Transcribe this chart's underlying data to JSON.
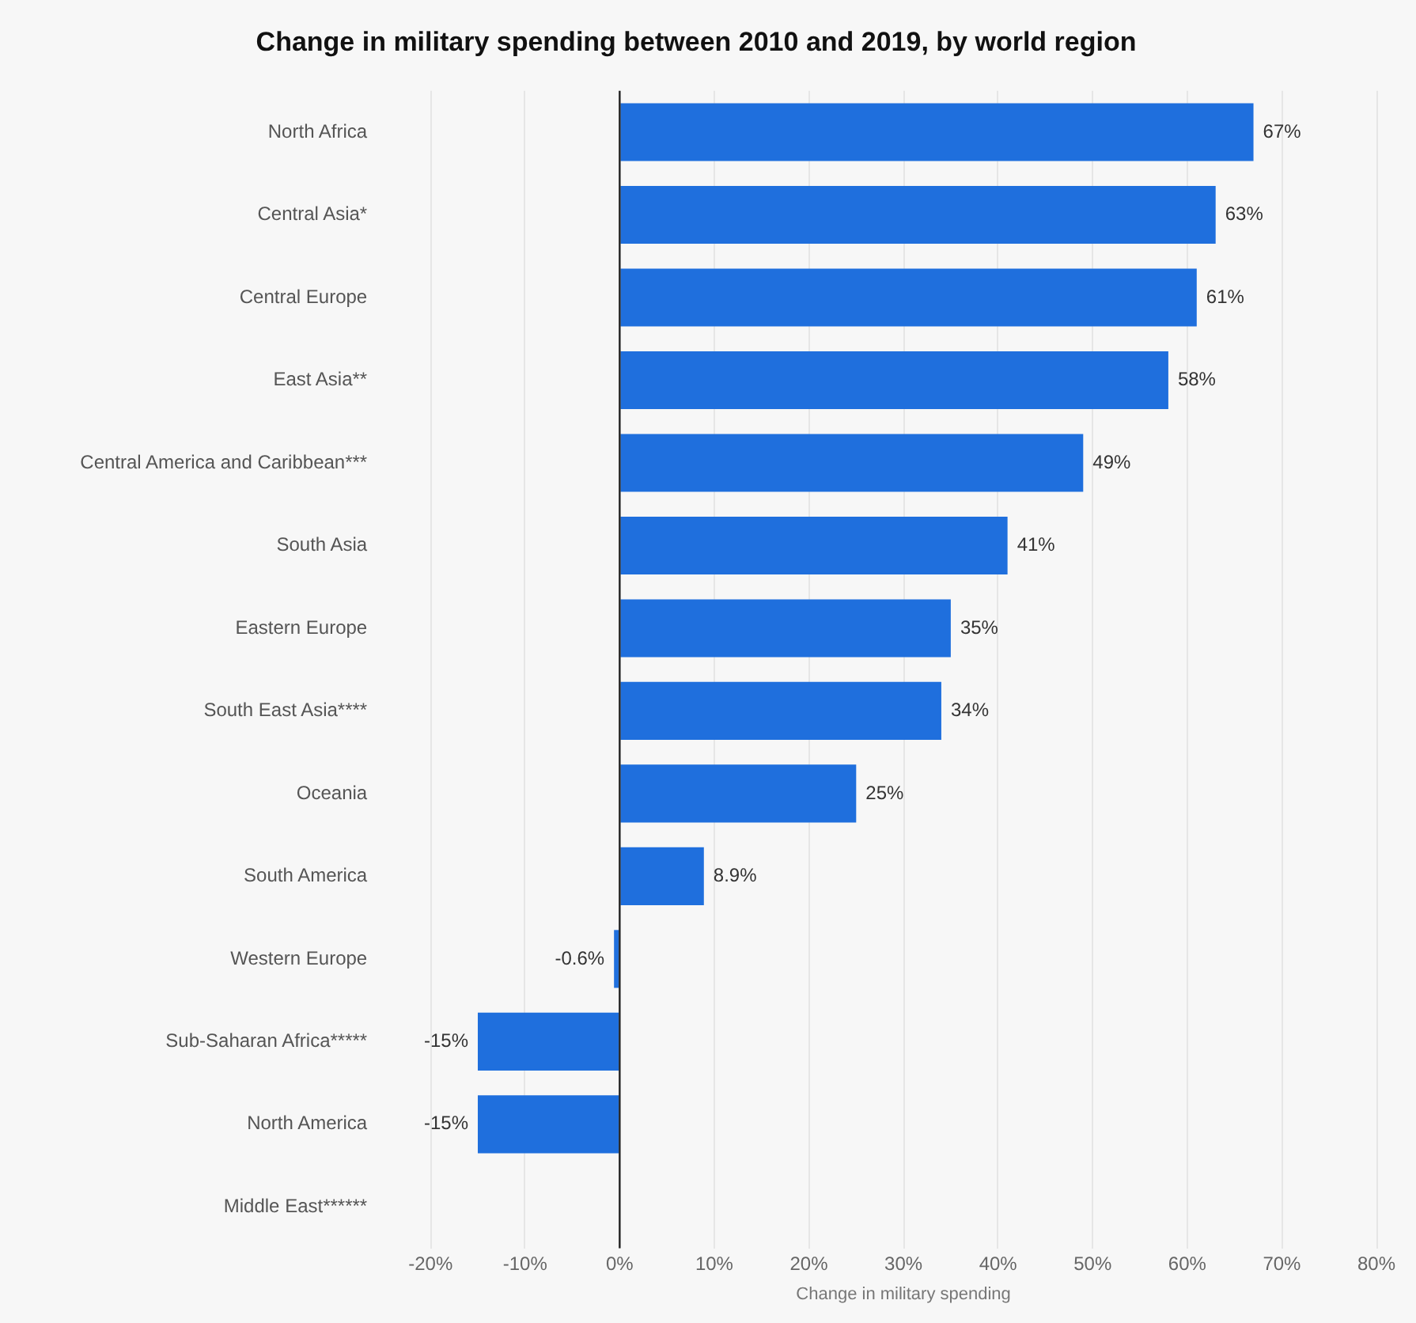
{
  "chart_data": {
    "type": "bar",
    "orientation": "horizontal",
    "title": "Change in military spending between 2010 and 2019, by world region",
    "xlabel": "Change in military spending",
    "categories": [
      "North Africa",
      "Central Asia*",
      "Central Europe",
      "East Asia**",
      "Central America and Caribbean***",
      "South Asia",
      "Eastern Europe",
      "South East Asia****",
      "Oceania",
      "South America",
      "Western Europe",
      "Sub-Saharan Africa*****",
      "North America",
      "Middle East******"
    ],
    "values": [
      67,
      63,
      61,
      58,
      49,
      41,
      35,
      34,
      25,
      8.9,
      -0.6,
      -15,
      -15,
      null
    ],
    "color": "#1f6fdd",
    "xlim": [
      -20,
      80
    ],
    "xticks": [
      {
        "value": -20,
        "label": "-20%"
      },
      {
        "value": -10,
        "label": "-10%"
      },
      {
        "value": 0,
        "label": "0%"
      },
      {
        "value": 10,
        "label": "10%"
      },
      {
        "value": 20,
        "label": "20%"
      },
      {
        "value": 30,
        "label": "30%"
      },
      {
        "value": 40,
        "label": "40%"
      },
      {
        "value": 50,
        "label": "50%"
      },
      {
        "value": 60,
        "label": "60%"
      },
      {
        "value": 70,
        "label": "70%"
      },
      {
        "value": 80,
        "label": "80%"
      }
    ],
    "value_labels": [
      "67%",
      "63%",
      "61%",
      "58%",
      "49%",
      "41%",
      "35%",
      "34%",
      "25%",
      "8.9%",
      "-0.6%",
      "-15%",
      "-15%",
      null
    ],
    "ref_lines": [
      {
        "axis": "x",
        "value": 0,
        "color": "#222222"
      }
    ],
    "grid": "x",
    "legend": false
  }
}
